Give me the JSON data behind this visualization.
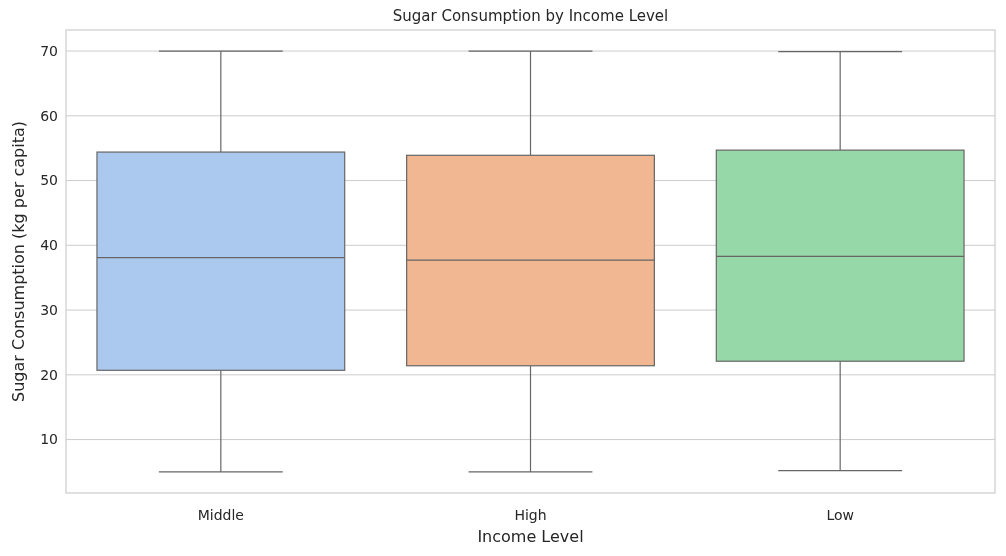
{
  "chart_data": {
    "type": "box",
    "title": "Sugar Consumption by Income Level",
    "xlabel": "Income Level",
    "ylabel": "Sugar Consumption (kg per capita)",
    "categories": [
      "Middle",
      "High",
      "Low"
    ],
    "colors": [
      "#abc9ee",
      "#f0b792",
      "#97d8a8"
    ],
    "boxes": [
      {
        "low": 5,
        "q1": 20.7,
        "median": 38.1,
        "q3": 54.4,
        "high": 70
      },
      {
        "low": 5,
        "q1": 21.4,
        "median": 37.7,
        "q3": 53.9,
        "high": 70
      },
      {
        "low": 5.2,
        "q1": 22.1,
        "median": 38.3,
        "q3": 54.7,
        "high": 69.9
      }
    ],
    "ylim": [
      1.75,
      73.25
    ],
    "yticks": [
      10,
      20,
      30,
      40,
      50,
      60,
      70
    ],
    "grid": "y"
  }
}
